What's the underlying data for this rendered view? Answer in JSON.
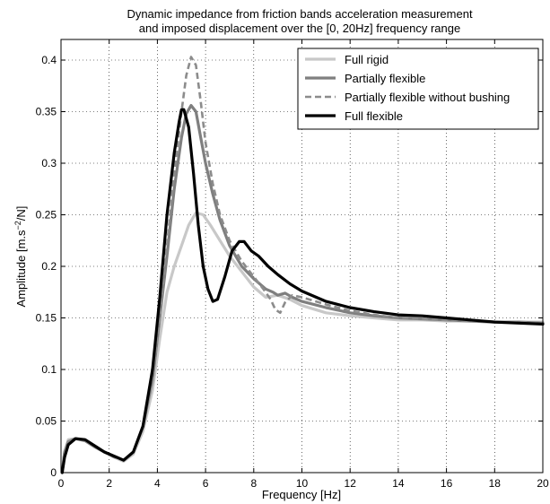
{
  "chart_data": {
    "type": "line",
    "title": [
      "Dynamic impedance from friction bands acceleration measurement",
      "and imposed displacement over the [0, 20Hz] frequency range"
    ],
    "xlabel": "Frequency [Hz]",
    "ylabel_parts": {
      "main": "Amplitude [m.s",
      "sup": "−2",
      "tail": "/N]"
    },
    "xlim": [
      0,
      20
    ],
    "ylim": [
      0,
      0.42
    ],
    "xticks": [
      0,
      2,
      4,
      6,
      8,
      10,
      12,
      14,
      16,
      18,
      20
    ],
    "xtick_labels": [
      "0",
      "2",
      "4",
      "6",
      "8",
      "10",
      "12",
      "14",
      "16",
      "18",
      "20"
    ],
    "yticks": [
      0,
      0.05,
      0.1,
      0.15,
      0.2,
      0.25,
      0.3,
      0.35,
      0.4
    ],
    "ytick_labels": [
      "0",
      "0.05",
      "0.1",
      "0.15",
      "0.2",
      "0.25",
      "0.3",
      "0.35",
      "0.4"
    ],
    "grid": true,
    "legend_position": "top-right",
    "series": [
      {
        "name": "Full rigid",
        "color": "#c8c8c8",
        "dash": "solid",
        "points": [
          [
            0.05,
            0
          ],
          [
            0.15,
            0.02
          ],
          [
            0.3,
            0.032
          ],
          [
            0.6,
            0.033
          ],
          [
            1.0,
            0.031
          ],
          [
            1.4,
            0.025
          ],
          [
            1.8,
            0.02
          ],
          [
            2.2,
            0.015
          ],
          [
            2.6,
            0.011
          ],
          [
            3.0,
            0.018
          ],
          [
            3.4,
            0.04
          ],
          [
            3.8,
            0.08
          ],
          [
            4.1,
            0.13
          ],
          [
            4.4,
            0.175
          ],
          [
            4.7,
            0.2
          ],
          [
            5.0,
            0.22
          ],
          [
            5.3,
            0.24
          ],
          [
            5.6,
            0.252
          ],
          [
            5.9,
            0.25
          ],
          [
            6.2,
            0.24
          ],
          [
            6.6,
            0.225
          ],
          [
            7.0,
            0.21
          ],
          [
            7.5,
            0.195
          ],
          [
            8.0,
            0.18
          ],
          [
            8.5,
            0.17
          ],
          [
            9.0,
            0.172
          ],
          [
            9.5,
            0.168
          ],
          [
            10,
            0.162
          ],
          [
            11,
            0.155
          ],
          [
            12,
            0.152
          ],
          [
            13,
            0.15
          ],
          [
            14,
            0.148
          ],
          [
            15,
            0.148
          ],
          [
            16,
            0.147
          ],
          [
            17,
            0.147
          ],
          [
            18,
            0.146
          ],
          [
            19,
            0.146
          ],
          [
            20,
            0.146
          ]
        ]
      },
      {
        "name": "Partially flexible",
        "color": "#7f7f7f",
        "dash": "solid",
        "points": [
          [
            0.05,
            0
          ],
          [
            0.15,
            0.02
          ],
          [
            0.3,
            0.03
          ],
          [
            0.6,
            0.033
          ],
          [
            1.0,
            0.031
          ],
          [
            1.4,
            0.025
          ],
          [
            1.8,
            0.02
          ],
          [
            2.2,
            0.016
          ],
          [
            2.6,
            0.012
          ],
          [
            3.0,
            0.02
          ],
          [
            3.4,
            0.045
          ],
          [
            3.8,
            0.09
          ],
          [
            4.1,
            0.15
          ],
          [
            4.4,
            0.21
          ],
          [
            4.7,
            0.275
          ],
          [
            5.0,
            0.325
          ],
          [
            5.2,
            0.348
          ],
          [
            5.4,
            0.356
          ],
          [
            5.6,
            0.35
          ],
          [
            5.8,
            0.325
          ],
          [
            6.0,
            0.3
          ],
          [
            6.3,
            0.27
          ],
          [
            6.6,
            0.245
          ],
          [
            7.0,
            0.22
          ],
          [
            7.5,
            0.2
          ],
          [
            8.0,
            0.188
          ],
          [
            8.5,
            0.178
          ],
          [
            8.8,
            0.175
          ],
          [
            9.0,
            0.172
          ],
          [
            9.3,
            0.174
          ],
          [
            9.6,
            0.17
          ],
          [
            10,
            0.166
          ],
          [
            11,
            0.16
          ],
          [
            12,
            0.155
          ],
          [
            13,
            0.152
          ],
          [
            14,
            0.15
          ],
          [
            15,
            0.149
          ],
          [
            16,
            0.148
          ],
          [
            17,
            0.147
          ],
          [
            18,
            0.146
          ],
          [
            19,
            0.146
          ],
          [
            20,
            0.145
          ]
        ]
      },
      {
        "name": "Partially flexible without bushing",
        "color": "#8c8c8c",
        "dash": "dashed",
        "points": [
          [
            0.05,
            0
          ],
          [
            0.15,
            0.02
          ],
          [
            0.3,
            0.03
          ],
          [
            0.6,
            0.033
          ],
          [
            1.0,
            0.031
          ],
          [
            1.4,
            0.025
          ],
          [
            1.8,
            0.02
          ],
          [
            2.2,
            0.015
          ],
          [
            2.6,
            0.012
          ],
          [
            3.0,
            0.02
          ],
          [
            3.4,
            0.045
          ],
          [
            3.8,
            0.09
          ],
          [
            4.1,
            0.15
          ],
          [
            4.4,
            0.22
          ],
          [
            4.7,
            0.29
          ],
          [
            5.0,
            0.35
          ],
          [
            5.2,
            0.385
          ],
          [
            5.4,
            0.403
          ],
          [
            5.6,
            0.395
          ],
          [
            5.8,
            0.36
          ],
          [
            6.0,
            0.32
          ],
          [
            6.3,
            0.28
          ],
          [
            6.6,
            0.25
          ],
          [
            7.0,
            0.225
          ],
          [
            7.5,
            0.205
          ],
          [
            8.0,
            0.19
          ],
          [
            8.4,
            0.178
          ],
          [
            8.7,
            0.168
          ],
          [
            8.9,
            0.158
          ],
          [
            9.1,
            0.155
          ],
          [
            9.3,
            0.165
          ],
          [
            9.6,
            0.172
          ],
          [
            10,
            0.17
          ],
          [
            11,
            0.163
          ],
          [
            12,
            0.157
          ],
          [
            13,
            0.153
          ],
          [
            14,
            0.15
          ],
          [
            15,
            0.149
          ],
          [
            16,
            0.148
          ],
          [
            17,
            0.147
          ],
          [
            18,
            0.146
          ],
          [
            19,
            0.146
          ],
          [
            20,
            0.145
          ]
        ]
      },
      {
        "name": "Full flexible",
        "color": "#000000",
        "dash": "solid",
        "points": [
          [
            0.05,
            0
          ],
          [
            0.15,
            0.015
          ],
          [
            0.3,
            0.027
          ],
          [
            0.6,
            0.033
          ],
          [
            1.0,
            0.032
          ],
          [
            1.4,
            0.026
          ],
          [
            1.8,
            0.02
          ],
          [
            2.2,
            0.016
          ],
          [
            2.6,
            0.012
          ],
          [
            3.0,
            0.02
          ],
          [
            3.4,
            0.045
          ],
          [
            3.8,
            0.1
          ],
          [
            4.1,
            0.17
          ],
          [
            4.4,
            0.25
          ],
          [
            4.7,
            0.31
          ],
          [
            4.9,
            0.34
          ],
          [
            5.0,
            0.352
          ],
          [
            5.1,
            0.352
          ],
          [
            5.3,
            0.335
          ],
          [
            5.5,
            0.29
          ],
          [
            5.7,
            0.24
          ],
          [
            5.9,
            0.2
          ],
          [
            6.1,
            0.178
          ],
          [
            6.3,
            0.166
          ],
          [
            6.5,
            0.168
          ],
          [
            6.8,
            0.19
          ],
          [
            7.1,
            0.215
          ],
          [
            7.4,
            0.224
          ],
          [
            7.6,
            0.224
          ],
          [
            7.9,
            0.215
          ],
          [
            8.2,
            0.21
          ],
          [
            8.6,
            0.2
          ],
          [
            9.0,
            0.192
          ],
          [
            9.5,
            0.183
          ],
          [
            10,
            0.176
          ],
          [
            11,
            0.166
          ],
          [
            12,
            0.16
          ],
          [
            13,
            0.156
          ],
          [
            14,
            0.153
          ],
          [
            15,
            0.152
          ],
          [
            16,
            0.15
          ],
          [
            17,
            0.148
          ],
          [
            18,
            0.146
          ],
          [
            19,
            0.145
          ],
          [
            20,
            0.144
          ]
        ]
      }
    ]
  }
}
